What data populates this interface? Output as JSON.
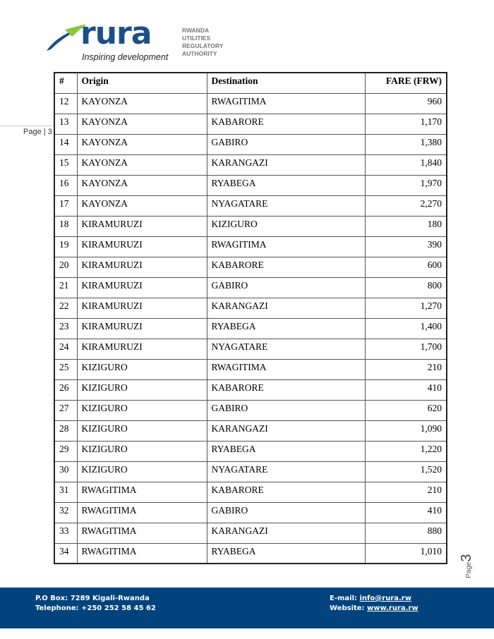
{
  "logo": {
    "word": "rura",
    "tagline": "Inspiring development",
    "org_lines": [
      "RWANDA",
      "UTILITIES",
      "REGULATORY",
      "AUTHORITY"
    ]
  },
  "side_label": "Page | 3",
  "table": {
    "headers": [
      "#",
      "Origin",
      "Destination",
      "FARE (FRW)"
    ],
    "rows": [
      [
        "12",
        "KAYONZA",
        "RWAGITIMA",
        "960"
      ],
      [
        "13",
        "KAYONZA",
        "KABARORE",
        "1,170"
      ],
      [
        "14",
        "KAYONZA",
        "GABIRO",
        "1,380"
      ],
      [
        "15",
        "KAYONZA",
        "KARANGAZI",
        "1,840"
      ],
      [
        "16",
        "KAYONZA",
        "RYABEGA",
        "1,970"
      ],
      [
        "17",
        "KAYONZA",
        "NYAGATARE",
        "2,270"
      ],
      [
        "18",
        "KIRAMURUZI",
        "KIZIGURO",
        "180"
      ],
      [
        "19",
        "KIRAMURUZI",
        "RWAGITIMA",
        "390"
      ],
      [
        "20",
        "KIRAMURUZI",
        "KABARORE",
        "600"
      ],
      [
        "21",
        "KIRAMURUZI",
        "GABIRO",
        "800"
      ],
      [
        "22",
        "KIRAMURUZI",
        "KARANGAZI",
        "1,270"
      ],
      [
        "23",
        "KIRAMURUZI",
        "RYABEGA",
        "1,400"
      ],
      [
        "24",
        "KIRAMURUZI",
        "NYAGATARE",
        "1,700"
      ],
      [
        "25",
        "KIZIGURO",
        "RWAGITIMA",
        "210"
      ],
      [
        "26",
        "KIZIGURO",
        "KABARORE",
        "410"
      ],
      [
        "27",
        "KIZIGURO",
        "GABIRO",
        "620"
      ],
      [
        "28",
        "KIZIGURO",
        "KARANGAZI",
        "1,090"
      ],
      [
        "29",
        "KIZIGURO",
        "RYABEGA",
        "1,220"
      ],
      [
        "30",
        "KIZIGURO",
        "NYAGATARE",
        "1,520"
      ],
      [
        "31",
        "RWAGITIMA",
        "KABARORE",
        "210"
      ],
      [
        "32",
        "RWAGITIMA",
        "GABIRO",
        "410"
      ],
      [
        "33",
        "RWAGITIMA",
        "KARANGAZI",
        "880"
      ],
      [
        "34",
        "RWAGITIMA",
        "RYABEGA",
        "1,010"
      ]
    ]
  },
  "page_marker": {
    "label": "Page",
    "number": "3"
  },
  "footer": {
    "po_box": "P.O Box: 7289 Kigali-Rwanda",
    "telephone": "Telephone: +250 252 58 45 62",
    "email_label": "E-mail: ",
    "email": "info@rura.rw",
    "website_label": "Website: ",
    "website": "www.rura.rw",
    "color": "#02437d"
  }
}
